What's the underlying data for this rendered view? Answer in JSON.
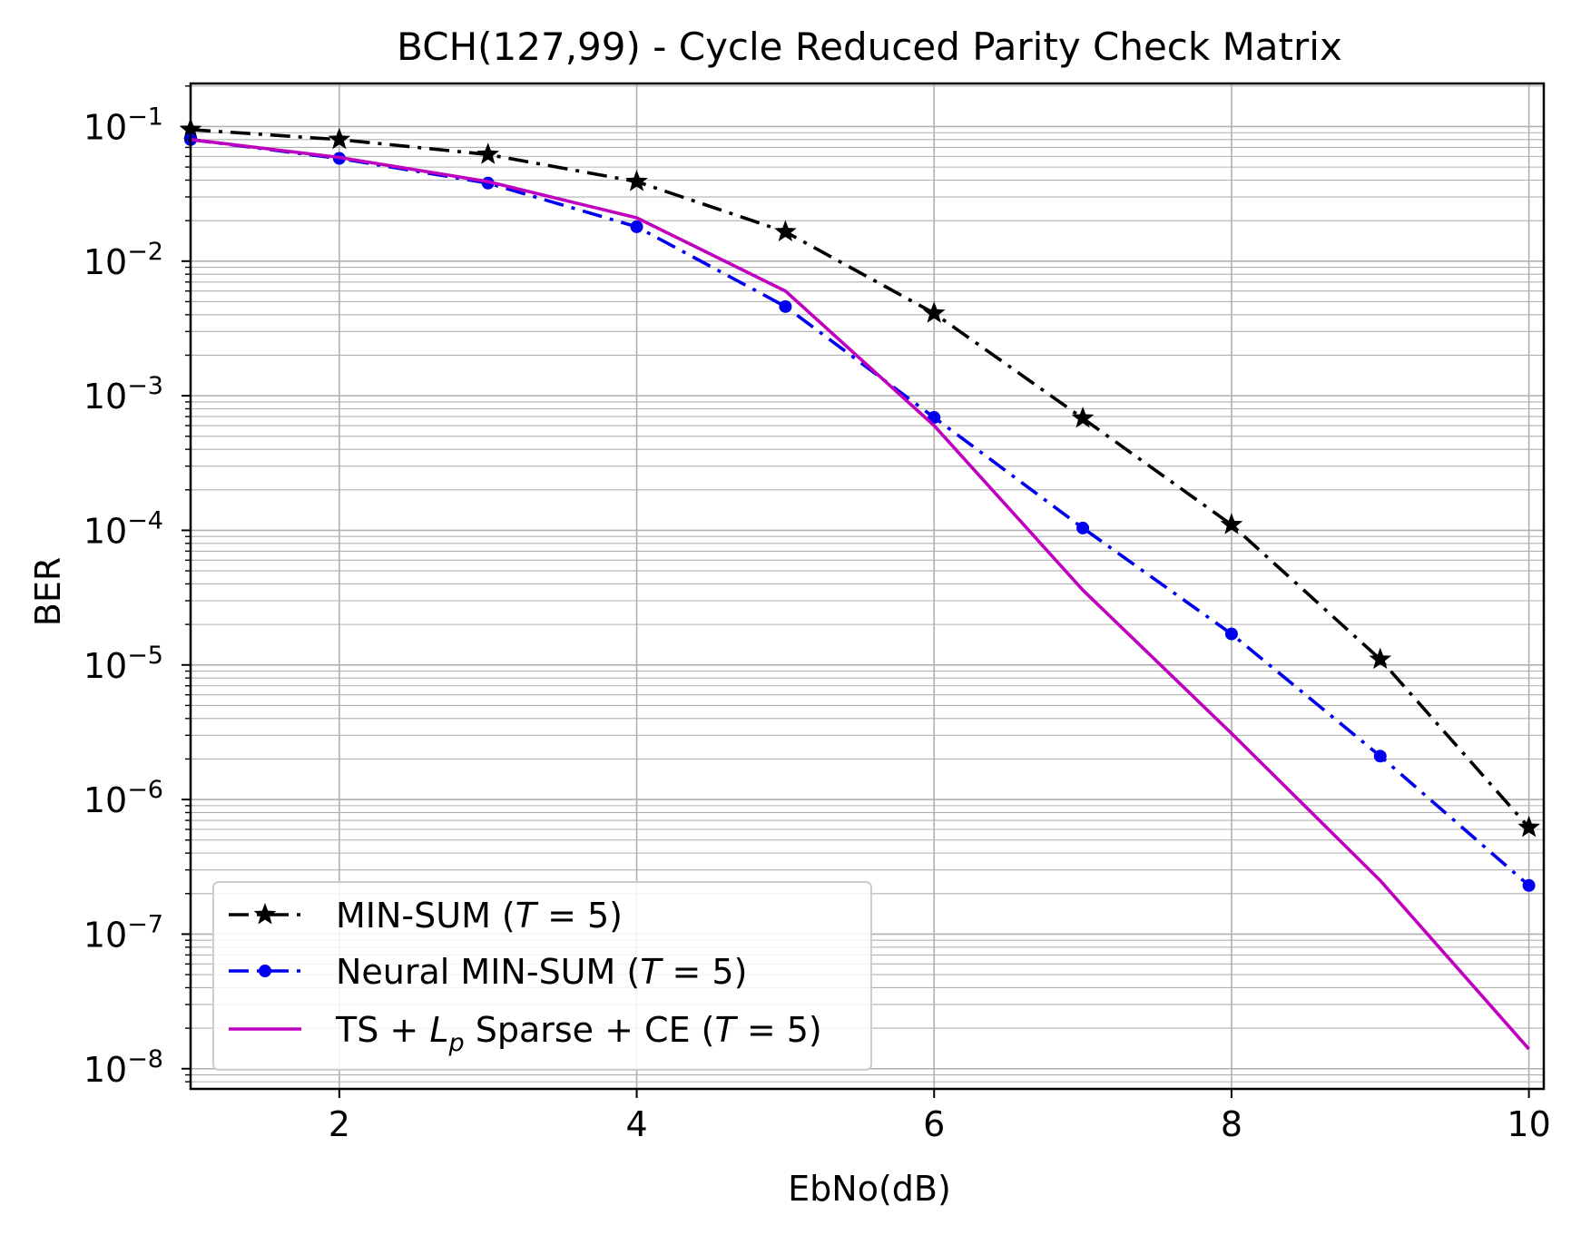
{
  "chart_data": {
    "type": "line",
    "title": "BCH(127,99) - Cycle Reduced Parity Check Matrix",
    "xlabel": "EbNo(dB)",
    "ylabel": "BER",
    "xlim": [
      1,
      10.1
    ],
    "ylim_log10": [
      -8.15,
      -0.68
    ],
    "yscale": "log",
    "grid": true,
    "legend_position": "lower-left",
    "x_ticks": [
      2,
      4,
      6,
      8,
      10
    ],
    "x_tick_labels": [
      "2",
      "4",
      "6",
      "8",
      "10"
    ],
    "y_tick_exponents": [
      -1,
      -2,
      -3,
      -4,
      -5,
      -6,
      -7,
      -8
    ],
    "y_tick_base": "10",
    "series": [
      {
        "name": "MIN-SUM (T = 5)",
        "legend_text": "MIN-SUM (",
        "legend_var": "T",
        "legend_eq": " = 5)",
        "color": "#000000",
        "line_style": "dashdot",
        "marker": "star",
        "x": [
          1,
          2,
          3,
          4,
          5,
          6,
          7,
          8,
          9,
          10
        ],
        "y": [
          0.095,
          0.08,
          0.062,
          0.039,
          0.0165,
          0.0041,
          0.00068,
          0.00011,
          1.1e-05,
          6.2e-07
        ]
      },
      {
        "name": "Neural MIN-SUM (T = 5)",
        "legend_text": "Neural MIN-SUM (",
        "legend_var": "T",
        "legend_eq": " = 5)",
        "color": "#0000ee",
        "line_style": "dashdot",
        "marker": "circle",
        "x": [
          1,
          2,
          3,
          4,
          5,
          6,
          7,
          8,
          9,
          10
        ],
        "y": [
          0.08,
          0.058,
          0.038,
          0.018,
          0.0046,
          0.00069,
          0.000104,
          1.7e-05,
          2.1e-06,
          2.3e-07
        ]
      },
      {
        "name": "TS + Lp Sparse + CE (T = 5)",
        "legend_text": "TS + ",
        "legend_var": "L",
        "legend_sub": "p",
        "legend_text2": " Sparse + CE (",
        "legend_var2": "T",
        "legend_eq": " = 5)",
        "color": "#bf00bf",
        "line_style": "solid",
        "marker": "none",
        "x": [
          1,
          2,
          3,
          4,
          5,
          6,
          7,
          8,
          9,
          10
        ],
        "y": [
          0.08,
          0.059,
          0.039,
          0.021,
          0.006,
          0.0006,
          3.6e-05,
          3.1e-06,
          2.5e-07,
          1.4e-08
        ]
      }
    ]
  }
}
